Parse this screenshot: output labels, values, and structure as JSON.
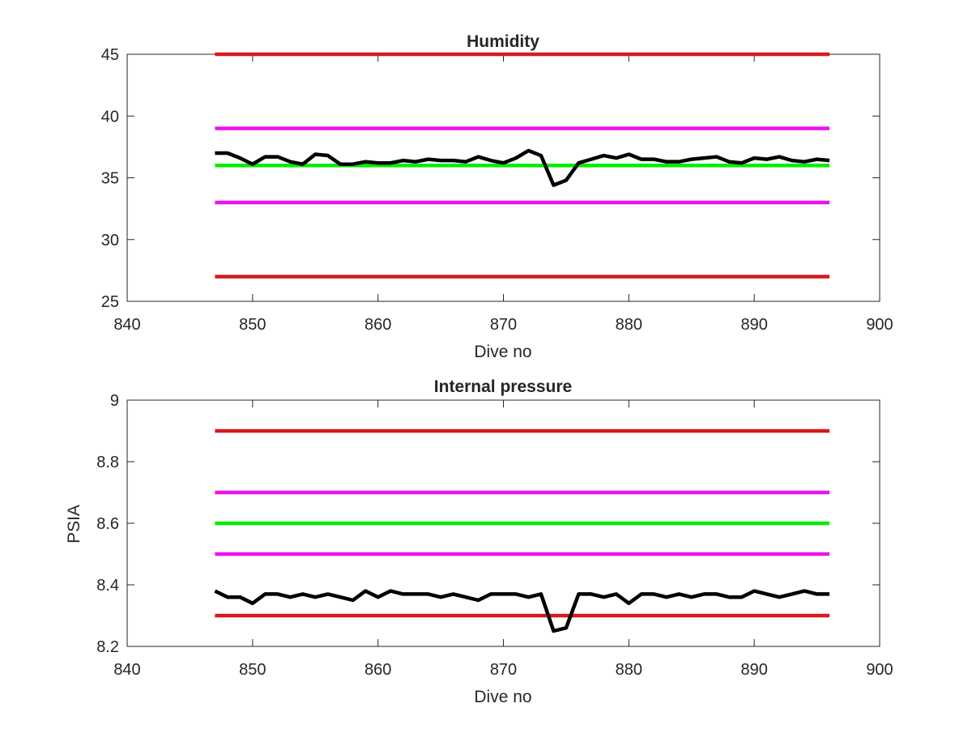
{
  "chart_data": [
    {
      "type": "line",
      "title": "Humidity",
      "xlabel": "Dive no",
      "ylabel": "",
      "xlim": [
        840,
        900
      ],
      "ylim": [
        25,
        45
      ],
      "xticks": [
        "840",
        "850",
        "860",
        "870",
        "880",
        "890",
        "900"
      ],
      "yticks": [
        "25",
        "30",
        "35",
        "40",
        "45"
      ],
      "grid": false,
      "reference_lines": [
        {
          "color": "#d7191c",
          "x": [
            847,
            896
          ],
          "y": 45
        },
        {
          "color": "#ee11ee",
          "x": [
            847,
            896
          ],
          "y": 39
        },
        {
          "color": "#00ee00",
          "x": [
            847,
            896
          ],
          "y": 36
        },
        {
          "color": "#ee11ee",
          "x": [
            847,
            896
          ],
          "y": 33
        },
        {
          "color": "#d7191c",
          "x": [
            847,
            896
          ],
          "y": 27
        }
      ],
      "series": [
        {
          "color": "#000000",
          "x": [
            847,
            848,
            849,
            850,
            851,
            852,
            853,
            854,
            855,
            856,
            857,
            858,
            859,
            860,
            861,
            862,
            863,
            864,
            865,
            866,
            867,
            868,
            869,
            870,
            871,
            872,
            873,
            874,
            875,
            876,
            877,
            878,
            879,
            880,
            881,
            882,
            883,
            884,
            885,
            886,
            887,
            888,
            889,
            890,
            891,
            892,
            893,
            894,
            895,
            896
          ],
          "values": [
            37.0,
            37.0,
            36.6,
            36.1,
            36.7,
            36.7,
            36.3,
            36.1,
            36.9,
            36.8,
            36.1,
            36.1,
            36.3,
            36.2,
            36.2,
            36.4,
            36.3,
            36.5,
            36.4,
            36.4,
            36.3,
            36.7,
            36.4,
            36.2,
            36.6,
            37.2,
            36.8,
            34.4,
            34.8,
            36.2,
            36.5,
            36.8,
            36.6,
            36.9,
            36.5,
            36.5,
            36.3,
            36.3,
            36.5,
            36.6,
            36.7,
            36.3,
            36.2,
            36.6,
            36.5,
            36.7,
            36.4,
            36.3,
            36.5,
            36.4
          ]
        }
      ]
    },
    {
      "type": "line",
      "title": "Internal pressure",
      "xlabel": "Dive no",
      "ylabel": "PSIA",
      "xlim": [
        840,
        900
      ],
      "ylim": [
        8.2,
        9.0
      ],
      "xticks": [
        "840",
        "850",
        "860",
        "870",
        "880",
        "890",
        "900"
      ],
      "yticks": [
        "8.2",
        "8.4",
        "8.6",
        "8.8",
        "9"
      ],
      "grid": false,
      "reference_lines": [
        {
          "color": "#d7191c",
          "x": [
            847,
            896
          ],
          "y": 8.9
        },
        {
          "color": "#ee11ee",
          "x": [
            847,
            896
          ],
          "y": 8.7
        },
        {
          "color": "#00ee00",
          "x": [
            847,
            896
          ],
          "y": 8.6
        },
        {
          "color": "#ee11ee",
          "x": [
            847,
            896
          ],
          "y": 8.5
        },
        {
          "color": "#d7191c",
          "x": [
            847,
            896
          ],
          "y": 8.3
        }
      ],
      "series": [
        {
          "color": "#000000",
          "x": [
            847,
            848,
            849,
            850,
            851,
            852,
            853,
            854,
            855,
            856,
            857,
            858,
            859,
            860,
            861,
            862,
            863,
            864,
            865,
            866,
            867,
            868,
            869,
            870,
            871,
            872,
            873,
            874,
            875,
            876,
            877,
            878,
            879,
            880,
            881,
            882,
            883,
            884,
            885,
            886,
            887,
            888,
            889,
            890,
            891,
            892,
            893,
            894,
            895,
            896
          ],
          "values": [
            8.38,
            8.36,
            8.36,
            8.34,
            8.37,
            8.37,
            8.36,
            8.37,
            8.36,
            8.37,
            8.36,
            8.35,
            8.38,
            8.36,
            8.38,
            8.37,
            8.37,
            8.37,
            8.36,
            8.37,
            8.36,
            8.35,
            8.37,
            8.37,
            8.37,
            8.36,
            8.37,
            8.25,
            8.26,
            8.37,
            8.37,
            8.36,
            8.37,
            8.34,
            8.37,
            8.37,
            8.36,
            8.37,
            8.36,
            8.37,
            8.37,
            8.36,
            8.36,
            8.38,
            8.37,
            8.36,
            8.37,
            8.38,
            8.37,
            8.37
          ]
        }
      ]
    }
  ]
}
